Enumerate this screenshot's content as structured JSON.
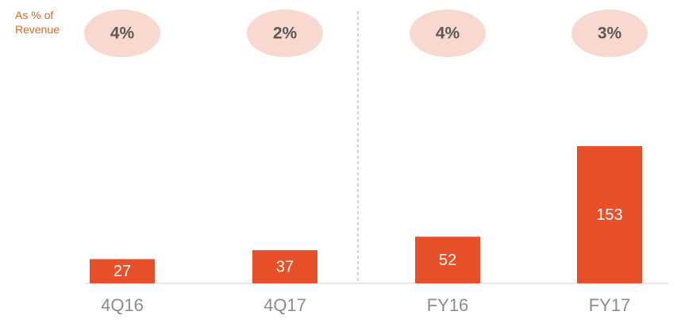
{
  "chart_data": {
    "type": "bar",
    "categories": [
      "4Q16",
      "4Q17",
      "FY16",
      "FY17"
    ],
    "values": [
      27,
      37,
      52,
      153
    ],
    "color": "#e8502a",
    "ylim": [
      0,
      200
    ],
    "annotation": "As % of Revenue",
    "percent_of_revenue": {
      "values": [
        4,
        2,
        4,
        3
      ],
      "value_labels": [
        "4%",
        "2%",
        "4%",
        "3%"
      ],
      "color": "#f9d9cf"
    }
  }
}
